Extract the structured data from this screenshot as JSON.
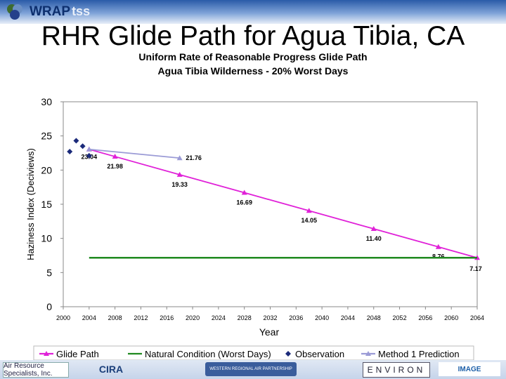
{
  "header": {
    "brand": "WRAP",
    "brand_suffix": "tss"
  },
  "slide_title": "RHR Glide Path for Agua Tibia, CA",
  "chart_data": {
    "type": "line",
    "title": "Uniform Rate of Reasonable Progress Glide Path",
    "subtitle": "Agua Tibia Wilderness - 20% Worst Days",
    "xlabel": "Year",
    "ylabel": "Haziness Index (Deciviews)",
    "xlim": [
      2000,
      2064
    ],
    "ylim": [
      0,
      30
    ],
    "xticks": [
      2000,
      2004,
      2008,
      2012,
      2016,
      2020,
      2024,
      2028,
      2032,
      2036,
      2040,
      2044,
      2048,
      2052,
      2056,
      2060,
      2064
    ],
    "yticks": [
      0,
      5,
      10,
      15,
      20,
      25,
      30
    ],
    "grid": false,
    "legend_position": "bottom",
    "series": [
      {
        "name": "Glide Path",
        "color": "#e021d8",
        "marker": "triangle",
        "x": [
          2004,
          2008,
          2018,
          2028,
          2038,
          2048,
          2058,
          2064
        ],
        "values": [
          23.04,
          21.98,
          19.33,
          16.69,
          14.05,
          11.4,
          8.76,
          7.17
        ],
        "labels": [
          "23.04",
          "21.98",
          "19.33",
          "16.69",
          "14.05",
          "11.40",
          "8.76",
          "7.17"
        ]
      },
      {
        "name": "Natural Condition (Worst Days)",
        "color": "#1f8a1f",
        "marker": "none",
        "x": [
          2004,
          2064
        ],
        "values": [
          7.17,
          7.17
        ]
      },
      {
        "name": "Observation",
        "color": "#1b2a7a",
        "marker": "diamond",
        "x": [
          2001,
          2002,
          2003,
          2004
        ],
        "values": [
          22.7,
          24.3,
          23.5,
          22.1
        ]
      },
      {
        "name": "Method 1 Prediction",
        "color": "#9b9bd6",
        "marker": "triangle",
        "x": [
          2004,
          2018
        ],
        "values": [
          23.04,
          21.76
        ],
        "labels": [
          "",
          "21.76"
        ]
      }
    ]
  },
  "footer": {
    "logos": [
      "Air Resource Specialists, Inc.",
      "CIRA",
      "WESTERN REGIONAL AIR PARTNERSHIP",
      "ENVIRON",
      "IMAGE"
    ]
  }
}
